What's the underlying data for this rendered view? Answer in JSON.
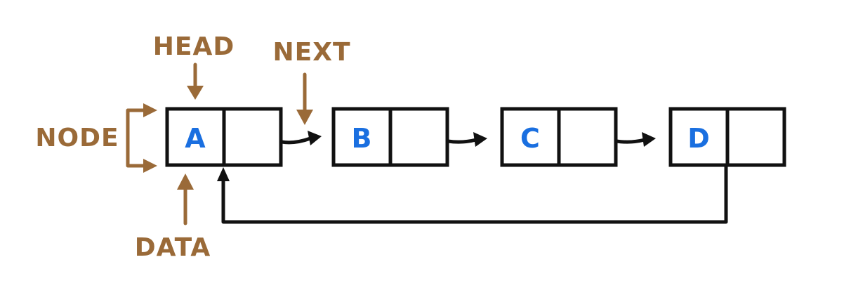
{
  "colors": {
    "annotation": "#9a6a38",
    "value": "#1a6fe0",
    "line": "#111111"
  },
  "nodes": [
    {
      "value": "A"
    },
    {
      "value": "B"
    },
    {
      "value": "C"
    },
    {
      "value": "D"
    }
  ],
  "labels": {
    "head": "HEAD",
    "next": "NEXT",
    "node": "NODE",
    "data": "DATA"
  }
}
